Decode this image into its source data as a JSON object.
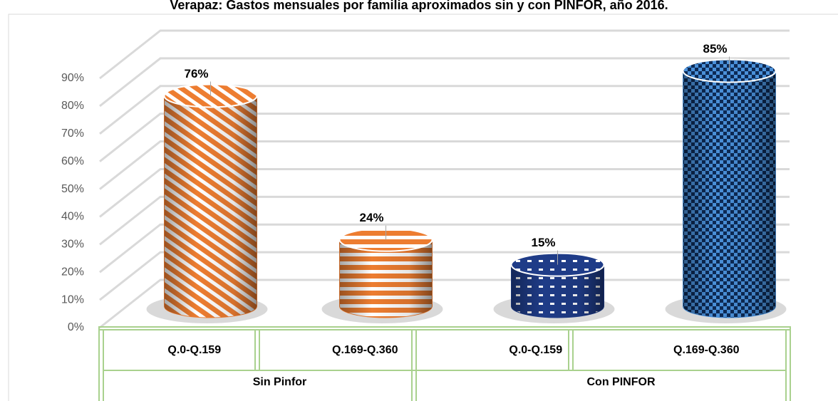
{
  "chart_data": {
    "type": "bar",
    "title": "Verapaz: Gastos mensuales por familia aproximados sin y con PINFOR, año 2016.",
    "categories": [
      "Q.0-Q.159",
      "Q.169-Q.360",
      "Q.0-Q.159",
      "Q.169-Q.360"
    ],
    "groups": [
      "Sin Pinfor",
      "Con PINFOR"
    ],
    "values": [
      76,
      24,
      15,
      85
    ],
    "value_labels": [
      "76%",
      "24%",
      "15%",
      "85%"
    ],
    "colors": [
      "#ed7d31",
      "#ed7d31",
      "#1f3c88",
      "#4a90d9"
    ],
    "ylim": [
      0,
      90
    ],
    "yticks": [
      {
        "value": 0,
        "label": "0%"
      },
      {
        "value": 10,
        "label": "10%"
      },
      {
        "value": 20,
        "label": "20%"
      },
      {
        "value": 30,
        "label": "30%"
      },
      {
        "value": 40,
        "label": "40%"
      },
      {
        "value": 50,
        "label": "50%"
      },
      {
        "value": 60,
        "label": "60%"
      },
      {
        "value": 70,
        "label": "70%"
      },
      {
        "value": 80,
        "label": "80%"
      },
      {
        "value": 90,
        "label": "90%"
      }
    ],
    "grid": true
  }
}
